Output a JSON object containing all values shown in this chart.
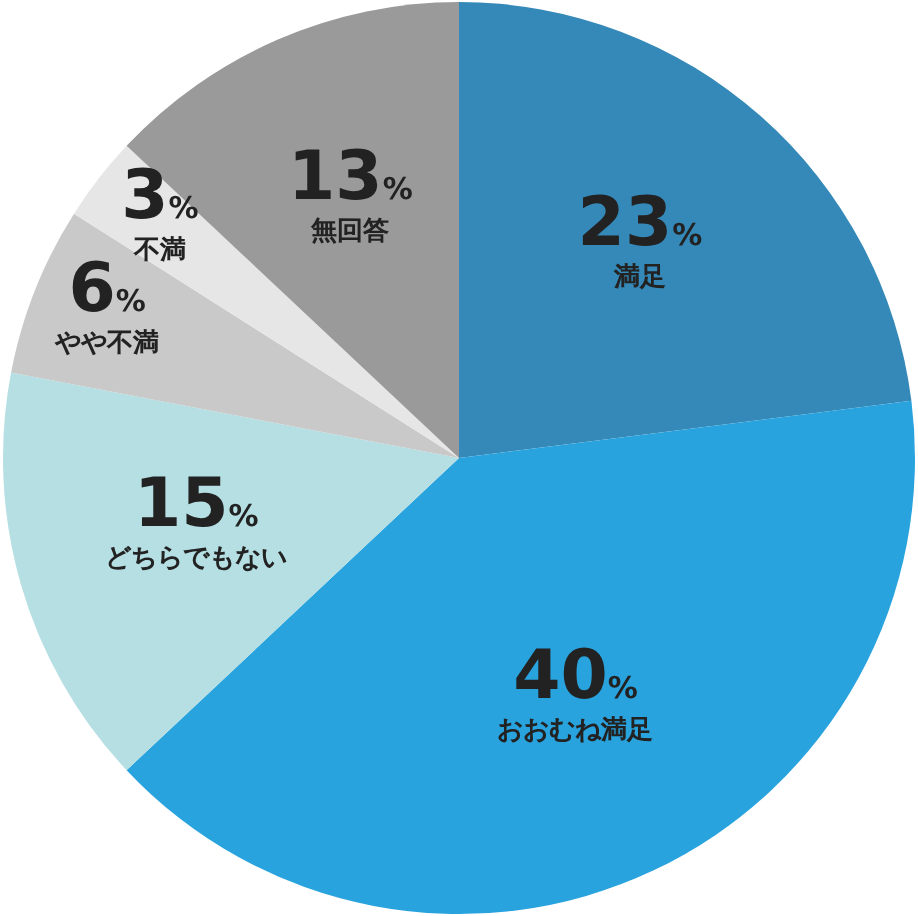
{
  "chart_data": {
    "type": "pie",
    "categories": [
      "満足",
      "おおむね満足",
      "どちらでもない",
      "やや不満",
      "不満",
      "無回答"
    ],
    "values": [
      23,
      40,
      15,
      6,
      3,
      13
    ],
    "colors": [
      "#3589b8",
      "#29a3de",
      "#b5dfe3",
      "#c9c9c9",
      "#e6e6e6",
      "#9a9a9a"
    ],
    "value_labels": [
      "23%",
      "40%",
      "15%",
      "6%",
      "3%",
      "13%"
    ]
  }
}
